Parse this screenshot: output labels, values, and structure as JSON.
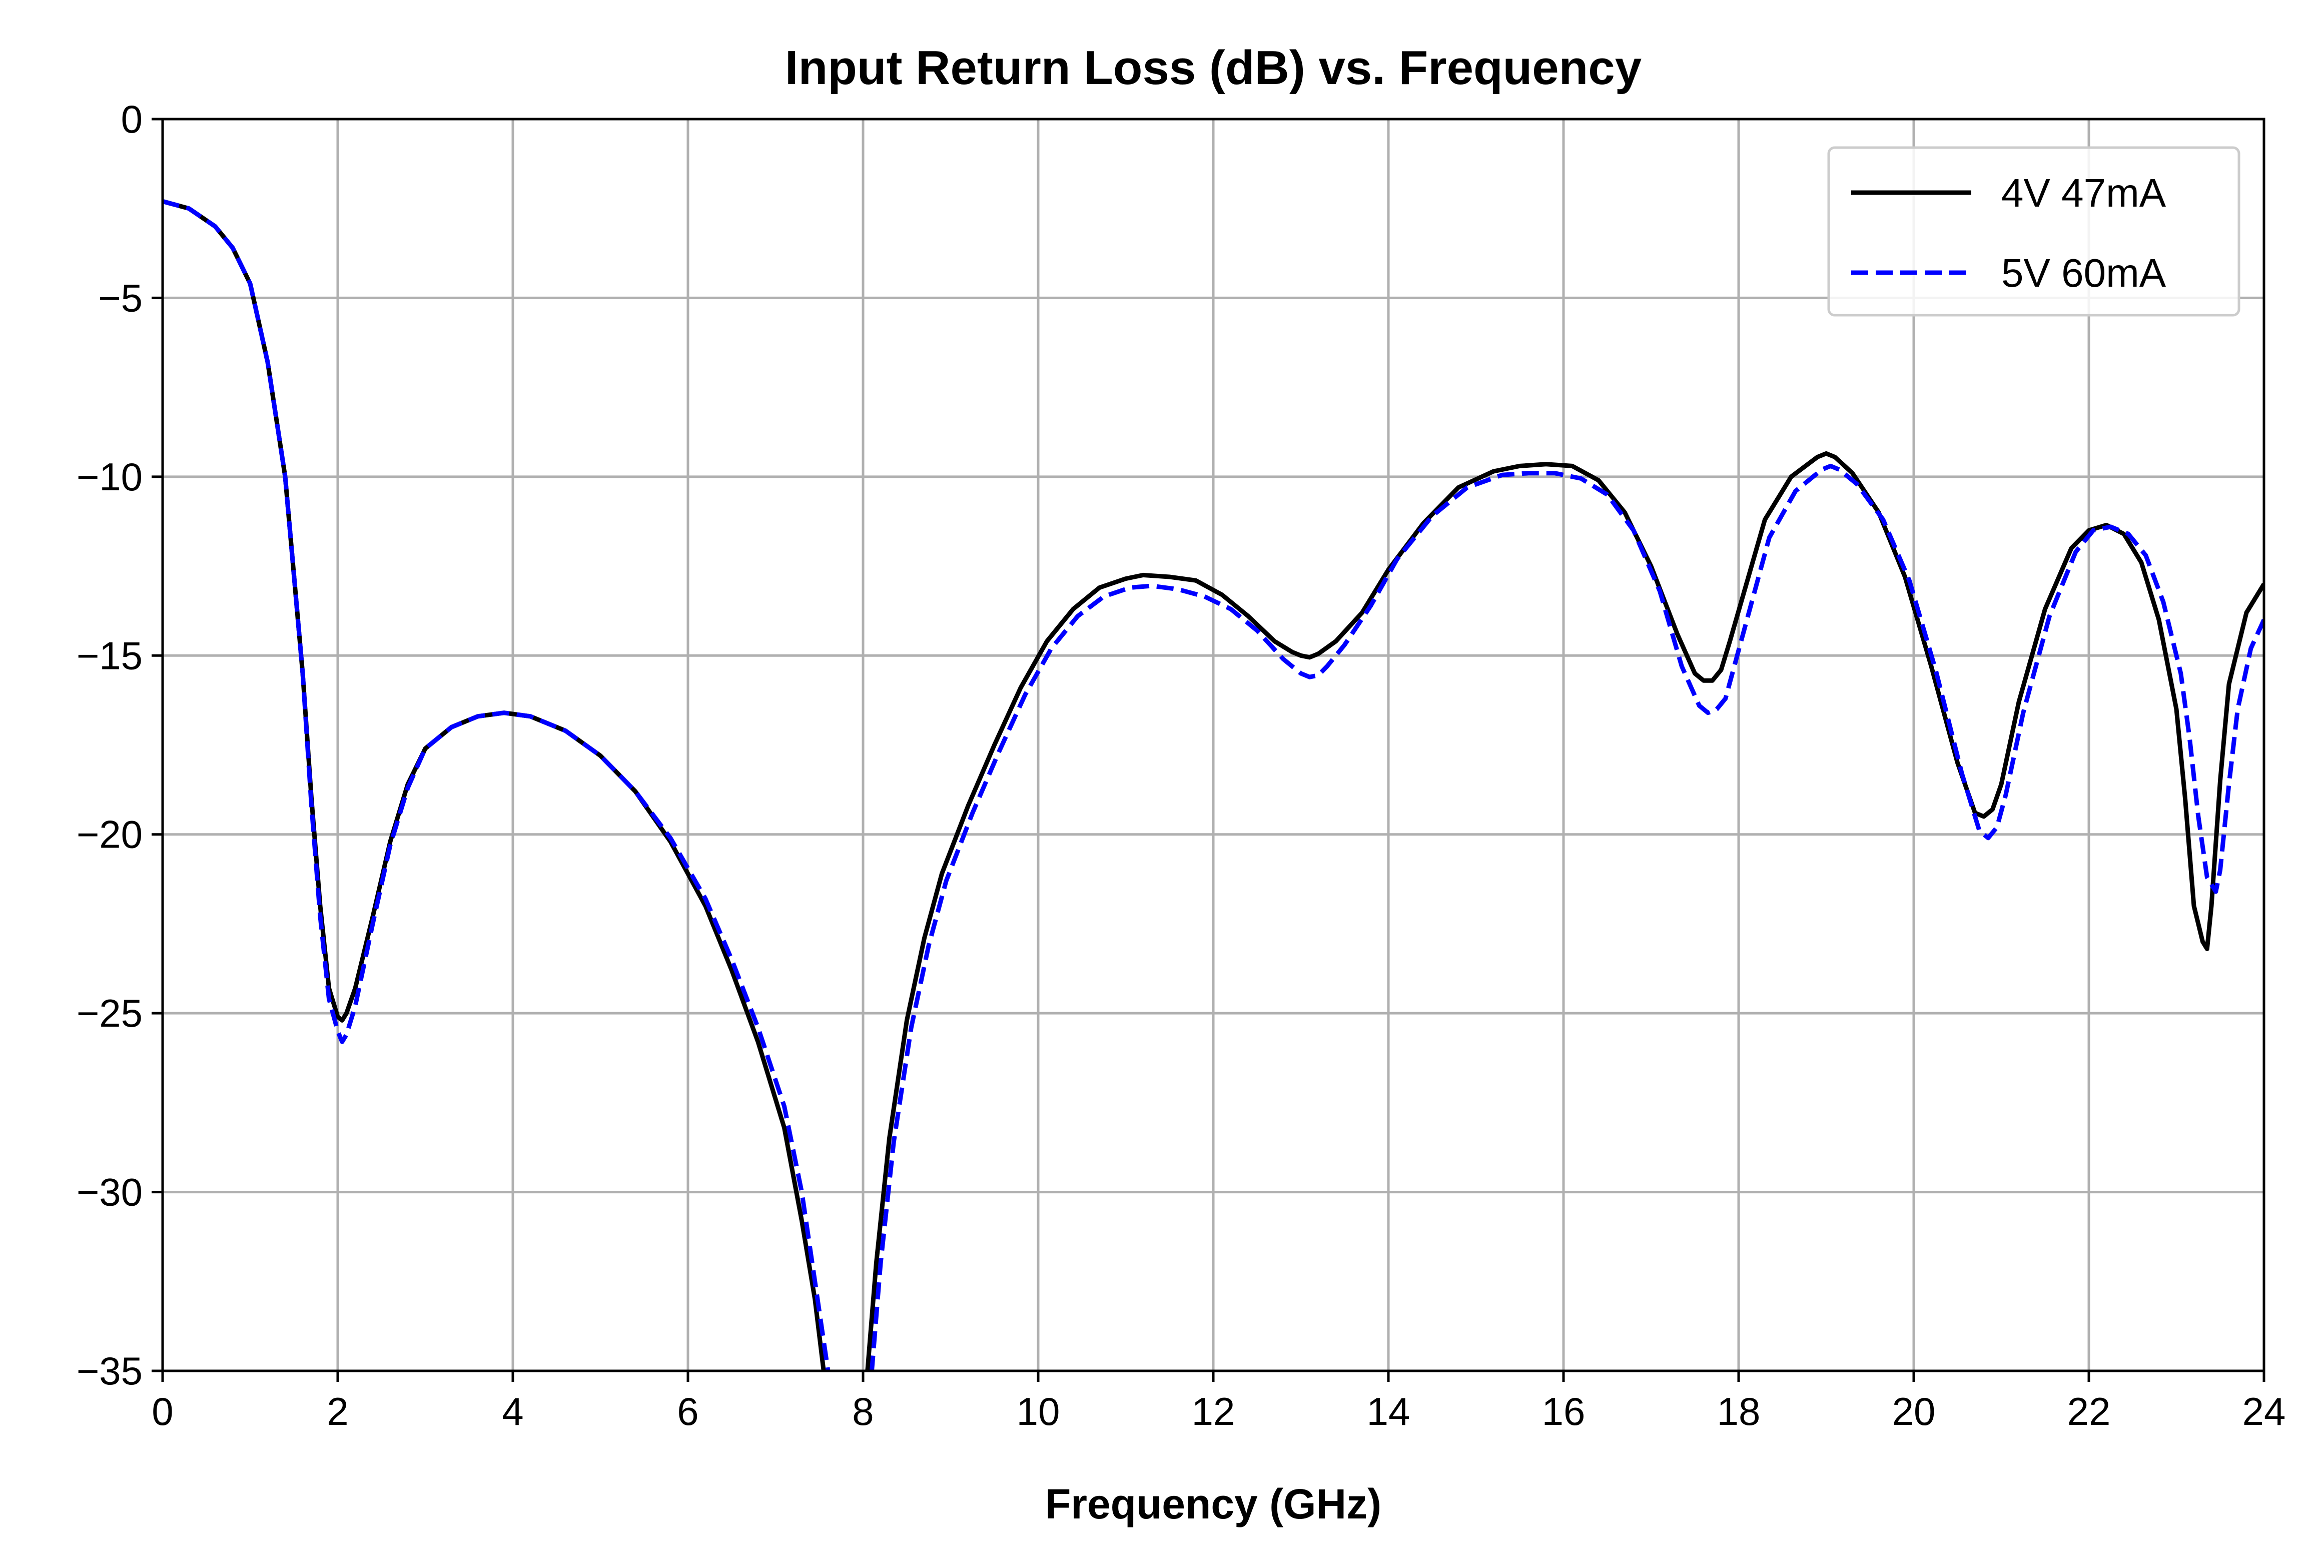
{
  "chart_data": {
    "type": "line",
    "title": "Input Return Loss (dB) vs. Frequency",
    "xlabel": "Frequency (GHz)",
    "ylabel": "",
    "xlim": [
      0,
      24
    ],
    "ylim": [
      -35,
      0
    ],
    "xticks": [
      0,
      2,
      4,
      6,
      8,
      10,
      12,
      14,
      16,
      18,
      20,
      22,
      24
    ],
    "yticks": [
      0,
      -5,
      -10,
      -15,
      -20,
      -25,
      -30,
      -35
    ],
    "xtick_labels": [
      "0",
      "2",
      "4",
      "6",
      "8",
      "10",
      "12",
      "14",
      "16",
      "18",
      "20",
      "22",
      "24"
    ],
    "ytick_labels": [
      "0",
      "−5",
      "−10",
      "−15",
      "−20",
      "−25",
      "−30",
      "−35"
    ],
    "grid": true,
    "legend_position": "top-right",
    "series": [
      {
        "name": "4V 47mA",
        "color": "#000000",
        "style": "solid",
        "x": [
          0,
          0.3,
          0.6,
          0.8,
          1.0,
          1.2,
          1.4,
          1.6,
          1.7,
          1.8,
          1.9,
          2.0,
          2.05,
          2.1,
          2.2,
          2.4,
          2.6,
          2.8,
          3.0,
          3.3,
          3.6,
          3.9,
          4.2,
          4.6,
          5.0,
          5.4,
          5.8,
          6.2,
          6.5,
          6.8,
          7.1,
          7.3,
          7.45,
          7.55,
          7.6,
          8.0,
          8.05,
          8.15,
          8.3,
          8.5,
          8.7,
          8.9,
          9.2,
          9.5,
          9.8,
          10.1,
          10.4,
          10.7,
          11.0,
          11.2,
          11.5,
          11.8,
          12.1,
          12.4,
          12.7,
          12.9,
          13.0,
          13.1,
          13.2,
          13.4,
          13.7,
          14.0,
          14.4,
          14.8,
          15.2,
          15.5,
          15.8,
          16.1,
          16.4,
          16.7,
          17.0,
          17.3,
          17.5,
          17.6,
          17.7,
          17.8,
          17.9,
          18.1,
          18.3,
          18.6,
          18.9,
          19.0,
          19.1,
          19.3,
          19.6,
          19.9,
          20.2,
          20.5,
          20.7,
          20.8,
          20.9,
          21.0,
          21.2,
          21.5,
          21.8,
          22.0,
          22.2,
          22.4,
          22.6,
          22.8,
          23.0,
          23.1,
          23.2,
          23.3,
          23.35,
          23.4,
          23.5,
          23.6,
          23.8,
          24.0
        ],
        "y": [
          -2.3,
          -2.5,
          -3.0,
          -3.6,
          -4.6,
          -6.8,
          -10.0,
          -15.5,
          -19.0,
          -22.0,
          -24.3,
          -25.1,
          -25.2,
          -25.0,
          -24.3,
          -22.3,
          -20.2,
          -18.6,
          -17.6,
          -17.0,
          -16.7,
          -16.6,
          -16.7,
          -17.1,
          -17.8,
          -18.8,
          -20.2,
          -22.0,
          -23.8,
          -25.8,
          -28.2,
          -30.8,
          -33.0,
          -35.0,
          -35.5,
          -35.5,
          -35.0,
          -32.0,
          -28.5,
          -25.2,
          -22.9,
          -21.1,
          -19.2,
          -17.5,
          -15.9,
          -14.6,
          -13.7,
          -13.1,
          -12.85,
          -12.75,
          -12.8,
          -12.9,
          -13.3,
          -13.9,
          -14.6,
          -14.9,
          -15.0,
          -15.05,
          -14.95,
          -14.6,
          -13.8,
          -12.6,
          -11.3,
          -10.3,
          -9.85,
          -9.7,
          -9.65,
          -9.7,
          -10.1,
          -11.0,
          -12.5,
          -14.4,
          -15.5,
          -15.7,
          -15.7,
          -15.4,
          -14.6,
          -12.9,
          -11.2,
          -10.0,
          -9.45,
          -9.35,
          -9.45,
          -9.9,
          -11.0,
          -12.8,
          -15.3,
          -18.0,
          -19.4,
          -19.5,
          -19.3,
          -18.6,
          -16.3,
          -13.7,
          -12.0,
          -11.5,
          -11.35,
          -11.6,
          -12.4,
          -14.0,
          -16.5,
          -19.0,
          -22.0,
          -23.0,
          -23.2,
          -22.0,
          -18.5,
          -15.8,
          -13.8,
          -13.0
        ]
      },
      {
        "name": "5V 60mA",
        "color": "#0000ff",
        "style": "dashed",
        "x": [
          0,
          0.3,
          0.6,
          0.8,
          1.0,
          1.2,
          1.4,
          1.6,
          1.7,
          1.8,
          1.9,
          2.0,
          2.05,
          2.1,
          2.2,
          2.4,
          2.6,
          2.8,
          3.0,
          3.3,
          3.6,
          3.9,
          4.2,
          4.6,
          5.0,
          5.4,
          5.8,
          6.2,
          6.5,
          6.8,
          7.1,
          7.3,
          7.45,
          7.6,
          7.65,
          8.05,
          8.1,
          8.2,
          8.35,
          8.55,
          8.75,
          8.95,
          9.25,
          9.55,
          9.85,
          10.15,
          10.45,
          10.75,
          11.05,
          11.3,
          11.6,
          11.9,
          12.2,
          12.5,
          12.8,
          13.0,
          13.1,
          13.2,
          13.3,
          13.5,
          13.8,
          14.1,
          14.5,
          14.9,
          15.3,
          15.6,
          15.9,
          16.2,
          16.5,
          16.8,
          17.1,
          17.35,
          17.55,
          17.65,
          17.75,
          17.85,
          17.95,
          18.15,
          18.35,
          18.65,
          18.95,
          19.05,
          19.15,
          19.35,
          19.65,
          19.95,
          20.25,
          20.55,
          20.75,
          20.85,
          20.95,
          21.05,
          21.25,
          21.55,
          21.85,
          22.05,
          22.25,
          22.45,
          22.65,
          22.85,
          23.05,
          23.15,
          23.25,
          23.35,
          23.45,
          23.5,
          23.6,
          23.7,
          23.85,
          24.0
        ],
        "y": [
          -2.3,
          -2.5,
          -3.0,
          -3.6,
          -4.6,
          -6.8,
          -10.0,
          -15.5,
          -19.2,
          -22.3,
          -24.6,
          -25.5,
          -25.8,
          -25.6,
          -24.8,
          -22.5,
          -20.3,
          -18.7,
          -17.6,
          -17.0,
          -16.7,
          -16.6,
          -16.7,
          -17.1,
          -17.8,
          -18.8,
          -20.1,
          -21.8,
          -23.5,
          -25.4,
          -27.6,
          -30.0,
          -32.5,
          -35.0,
          -35.5,
          -35.5,
          -35.0,
          -32.0,
          -28.6,
          -25.4,
          -23.1,
          -21.3,
          -19.4,
          -17.7,
          -16.1,
          -14.8,
          -13.9,
          -13.35,
          -13.1,
          -13.05,
          -13.15,
          -13.35,
          -13.7,
          -14.3,
          -15.1,
          -15.5,
          -15.6,
          -15.55,
          -15.3,
          -14.7,
          -13.6,
          -12.3,
          -11.1,
          -10.3,
          -9.95,
          -9.9,
          -9.9,
          -10.05,
          -10.5,
          -11.5,
          -13.2,
          -15.3,
          -16.4,
          -16.6,
          -16.5,
          -16.2,
          -15.3,
          -13.5,
          -11.7,
          -10.4,
          -9.8,
          -9.7,
          -9.8,
          -10.2,
          -11.2,
          -12.9,
          -15.4,
          -18.3,
          -19.9,
          -20.1,
          -19.8,
          -18.9,
          -16.6,
          -13.9,
          -12.1,
          -11.5,
          -11.4,
          -11.6,
          -12.2,
          -13.5,
          -15.5,
          -17.3,
          -19.5,
          -21.2,
          -21.6,
          -21.0,
          -18.6,
          -16.5,
          -14.8,
          -14.0
        ]
      }
    ]
  }
}
